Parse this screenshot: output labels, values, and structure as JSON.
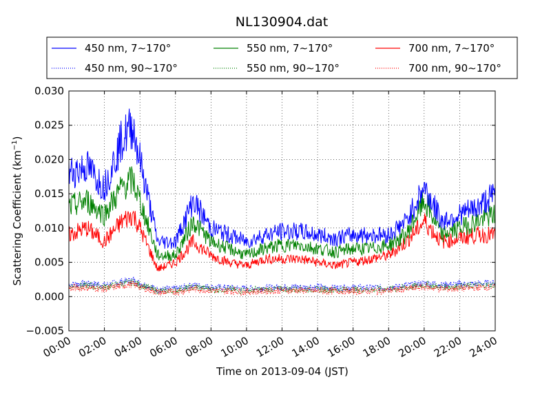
{
  "chart_data": {
    "type": "line",
    "title": "NL130904.dat",
    "xlabel": "Time on 2013-09-04 (JST)",
    "ylabel_main": "Scattering Coefficient (km",
    "ylabel_sup": "−1",
    "ylabel_close": ")",
    "xlim": [
      "00:00",
      "24:00"
    ],
    "ylim": [
      -0.005,
      0.03
    ],
    "grid": true,
    "legend_placement": "top, above plot (3 columns)",
    "x_ticks": [
      "00:00",
      "02:00",
      "04:00",
      "06:00",
      "08:00",
      "10:00",
      "12:00",
      "14:00",
      "16:00",
      "18:00",
      "20:00",
      "22:00",
      "24:00"
    ],
    "y_ticks": [
      "−0.005",
      "0.000",
      "0.005",
      "0.010",
      "0.015",
      "0.020",
      "0.025",
      "0.030"
    ],
    "x_hours": [
      0,
      1,
      2,
      3,
      3.6,
      4,
      5,
      6,
      7,
      8,
      9,
      10,
      11,
      12,
      13,
      14,
      15,
      16,
      17,
      18,
      19,
      20,
      21,
      22,
      23,
      24
    ],
    "series": [
      {
        "name": "450 nm, 7∼170°",
        "color": "#0000ff",
        "style": "solid",
        "values": [
          0.018,
          0.019,
          0.016,
          0.023,
          0.025,
          0.02,
          0.008,
          0.008,
          0.014,
          0.01,
          0.009,
          0.008,
          0.009,
          0.0095,
          0.0095,
          0.009,
          0.0085,
          0.009,
          0.009,
          0.009,
          0.011,
          0.016,
          0.011,
          0.012,
          0.013,
          0.015
        ]
      },
      {
        "name": "550 nm, 7∼170°",
        "color": "#008000",
        "style": "solid",
        "values": [
          0.013,
          0.014,
          0.012,
          0.016,
          0.017,
          0.014,
          0.006,
          0.006,
          0.011,
          0.008,
          0.007,
          0.006,
          0.007,
          0.0075,
          0.0075,
          0.007,
          0.0065,
          0.007,
          0.007,
          0.0075,
          0.009,
          0.014,
          0.009,
          0.01,
          0.011,
          0.012
        ]
      },
      {
        "name": "700 nm, 7∼170°",
        "color": "#ff0000",
        "style": "solid",
        "values": [
          0.009,
          0.01,
          0.008,
          0.011,
          0.012,
          0.01,
          0.004,
          0.005,
          0.008,
          0.006,
          0.005,
          0.0045,
          0.0055,
          0.0055,
          0.0055,
          0.005,
          0.0045,
          0.005,
          0.0055,
          0.006,
          0.008,
          0.011,
          0.008,
          0.0085,
          0.009,
          0.009
        ]
      },
      {
        "name": "450 nm, 90∼170°",
        "color": "#0000ff",
        "style": "dotted",
        "values": [
          0.0018,
          0.0019,
          0.0017,
          0.0022,
          0.0024,
          0.002,
          0.001,
          0.0011,
          0.0017,
          0.0014,
          0.0013,
          0.0012,
          0.0013,
          0.0014,
          0.0014,
          0.0013,
          0.0013,
          0.0013,
          0.0013,
          0.0013,
          0.0016,
          0.002,
          0.0017,
          0.0018,
          0.0019,
          0.002
        ]
      },
      {
        "name": "550 nm, 90∼170°",
        "color": "#008000",
        "style": "dotted",
        "values": [
          0.0015,
          0.0016,
          0.0014,
          0.0019,
          0.0021,
          0.0017,
          0.0008,
          0.0009,
          0.0014,
          0.0011,
          0.001,
          0.0009,
          0.001,
          0.0011,
          0.0011,
          0.001,
          0.001,
          0.001,
          0.001,
          0.0011,
          0.0013,
          0.0017,
          0.0014,
          0.0015,
          0.0016,
          0.0017
        ]
      },
      {
        "name": "700 nm, 90∼170°",
        "color": "#ff0000",
        "style": "dotted",
        "values": [
          0.0012,
          0.0013,
          0.0011,
          0.0016,
          0.0018,
          0.0014,
          0.0006,
          0.0007,
          0.0011,
          0.0009,
          0.0008,
          0.0007,
          0.0008,
          0.0009,
          0.0009,
          0.0008,
          0.0008,
          0.0008,
          0.0008,
          0.0009,
          0.0011,
          0.0014,
          0.0011,
          0.0012,
          0.0013,
          0.0014
        ]
      }
    ]
  }
}
